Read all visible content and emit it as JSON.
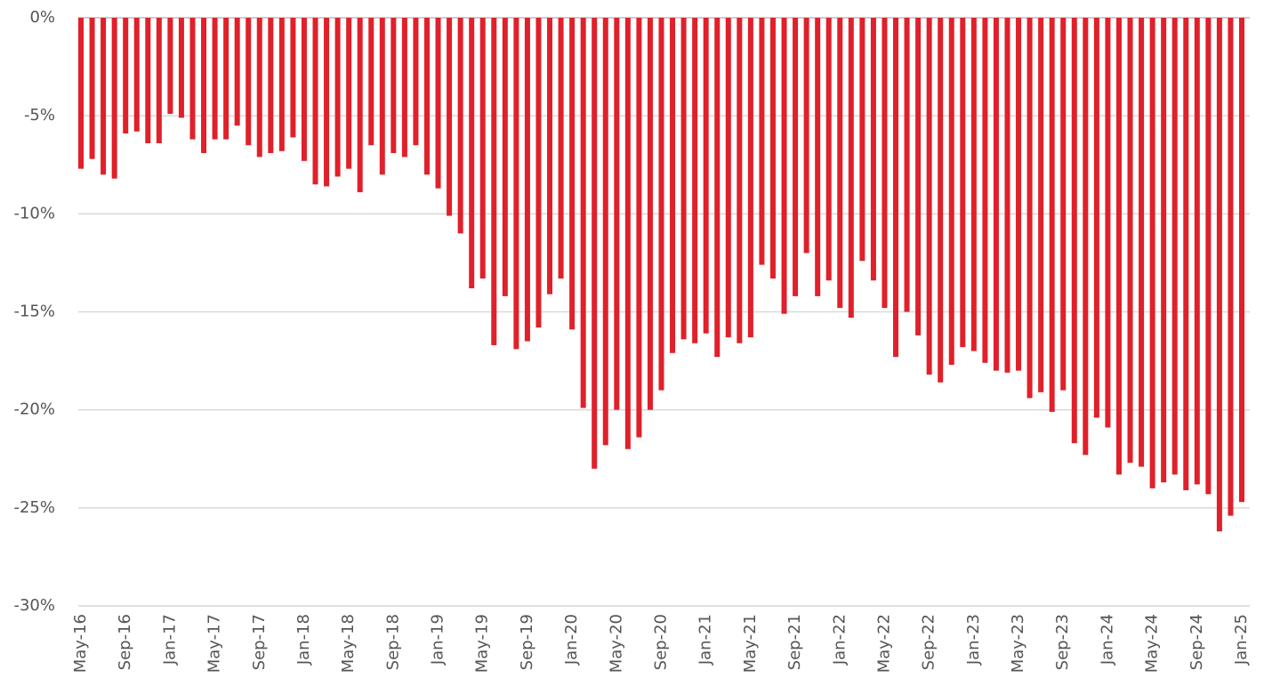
{
  "chart_data": {
    "type": "bar",
    "color": "#e0202a",
    "grid": true,
    "categories": [
      "May-16",
      null,
      null,
      null,
      "Sep-16",
      null,
      null,
      null,
      "Jan-17",
      null,
      null,
      null,
      "May-17",
      null,
      null,
      null,
      "Sep-17",
      null,
      null,
      null,
      "Jan-18",
      null,
      null,
      null,
      "May-18",
      null,
      null,
      null,
      "Sep-18",
      null,
      null,
      null,
      "Jan-19",
      null,
      null,
      null,
      "May-19",
      null,
      null,
      null,
      "Sep-19",
      null,
      null,
      null,
      "Jan-20",
      null,
      null,
      null,
      "May-20",
      null,
      null,
      null,
      "Sep-20",
      null,
      null,
      null,
      "Jan-21",
      null,
      null,
      null,
      "May-21",
      null,
      null,
      null,
      "Sep-21",
      null,
      null,
      null,
      "Jan-22",
      null,
      null,
      null,
      "May-22",
      null,
      null,
      null,
      "Sep-22",
      null,
      null,
      null,
      "Jan-23",
      null,
      null,
      null,
      "May-23",
      null,
      null,
      null,
      "Sep-23",
      null,
      null,
      null,
      "Jan-24",
      null,
      null,
      null,
      "May-24",
      null,
      null,
      null,
      "Sep-24",
      null,
      null,
      null,
      "Jan-25"
    ],
    "values": [
      -7.7,
      -7.2,
      -8.0,
      -8.2,
      -5.9,
      -5.8,
      -6.4,
      -6.4,
      -4.9,
      -5.1,
      -6.2,
      -6.9,
      -6.2,
      -6.2,
      -5.5,
      -6.5,
      -7.1,
      -6.9,
      -6.8,
      -6.1,
      -7.3,
      -8.5,
      -8.6,
      -8.1,
      -7.7,
      -8.9,
      -6.5,
      -8.0,
      -6.9,
      -7.1,
      -6.5,
      -8.0,
      -8.7,
      -10.1,
      -11.0,
      -13.8,
      -13.3,
      -16.7,
      -14.2,
      -16.9,
      -16.5,
      -15.8,
      -14.1,
      -13.3,
      -15.9,
      -19.9,
      -23.0,
      -21.8,
      -20.0,
      -22.0,
      -21.4,
      -20.0,
      -19.0,
      -17.1,
      -16.4,
      -16.6,
      -16.1,
      -17.3,
      -16.3,
      -16.6,
      -16.3,
      -12.6,
      -13.3,
      -15.1,
      -14.2,
      -12.0,
      -14.2,
      -13.4,
      -14.8,
      -15.3,
      -12.4,
      -13.4,
      -14.8,
      -17.3,
      -15.0,
      -16.2,
      -18.2,
      -18.6,
      -17.7,
      -16.8,
      -17.0,
      -17.6,
      -18.0,
      -18.1,
      -18.0,
      -19.4,
      -19.1,
      -20.1,
      -19.0,
      -21.7,
      -22.3,
      -20.4,
      -20.9,
      -23.3,
      -22.7,
      -22.9,
      -24.0,
      -23.7,
      -23.3,
      -24.1,
      -23.8,
      -24.3,
      -26.2,
      -25.4,
      -24.7
    ],
    "ylim": [
      -30,
      0
    ],
    "yticks": [
      {
        "value": 0,
        "label": "0%"
      },
      {
        "value": -5,
        "label": "-5%"
      },
      {
        "value": -10,
        "label": "-10%"
      },
      {
        "value": -15,
        "label": "-15%"
      },
      {
        "value": -20,
        "label": "-20%"
      },
      {
        "value": -25,
        "label": "-25%"
      },
      {
        "value": -30,
        "label": "-30%"
      }
    ]
  }
}
